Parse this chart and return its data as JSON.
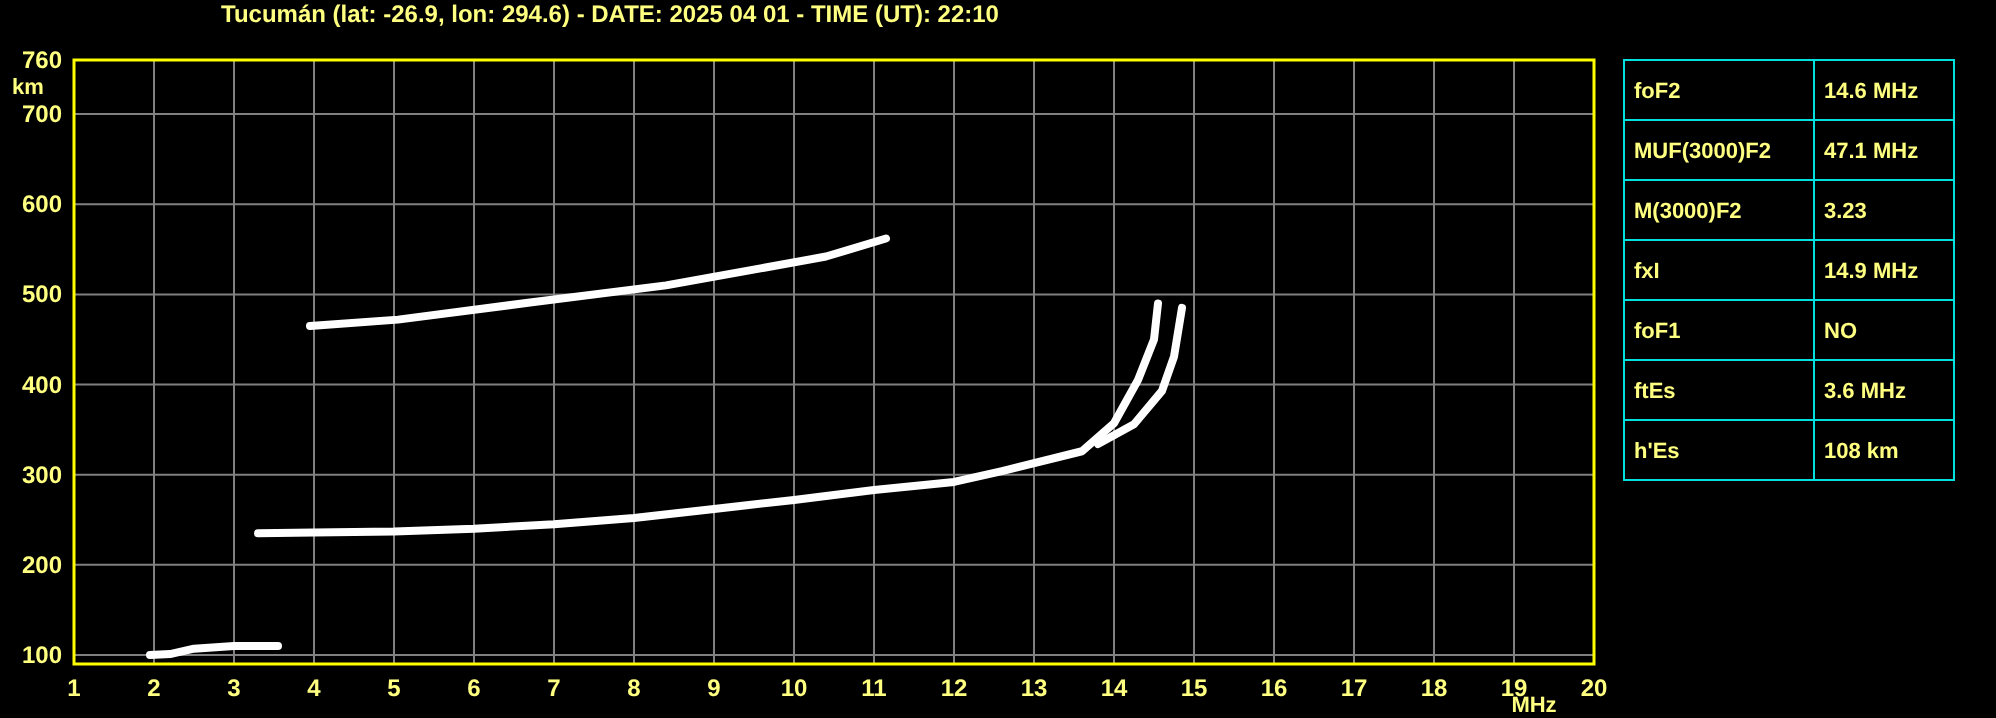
{
  "chart_data": [
    {
      "type": "line",
      "title": "Tucumán (lat: -26.9, lon: 294.6) - DATE: 2025 04 01 - TIME (UT): 22:10",
      "xlabel": "MHz",
      "ylabel": "km",
      "xlim": [
        1,
        20
      ],
      "ylim": [
        90,
        760
      ],
      "xticks": [
        1,
        2,
        3,
        4,
        5,
        6,
        7,
        8,
        9,
        10,
        11,
        12,
        13,
        14,
        15,
        16,
        17,
        18,
        19,
        20
      ],
      "yticks": [
        100,
        200,
        300,
        400,
        500,
        600,
        700,
        760
      ],
      "grid": true,
      "series": [
        {
          "color": "#ffffff",
          "x": [
            1.95,
            2.2,
            2.5,
            3,
            3.55
          ],
          "values": [
            100,
            101,
            107,
            110,
            110
          ]
        },
        {
          "color": "#ffffff",
          "x": [
            3.3,
            4,
            5,
            6,
            7,
            8,
            9,
            10,
            11,
            12,
            12.6,
            13.6,
            14,
            14.3,
            14.5,
            14.55
          ],
          "values": [
            235,
            236,
            237,
            240,
            245,
            252,
            262,
            272,
            283,
            292,
            304,
            326,
            357,
            405,
            450,
            490
          ]
        },
        {
          "color": "#ffffff",
          "x": [
            13.8,
            14.25,
            14.6,
            14.75,
            14.85
          ],
          "values": [
            334,
            356,
            393,
            431,
            485
          ]
        },
        {
          "color": "#ffffff",
          "x": [
            3.95,
            5.05,
            6.7,
            8.4,
            10.4,
            11.15
          ],
          "values": [
            465,
            472,
            491,
            510,
            542,
            562
          ]
        }
      ]
    },
    {
      "type": "other",
      "categories": [
        "foF2",
        "MUF(3000)F2",
        "M(3000)F2",
        "fxI",
        "foF1",
        "ftEs",
        "h'Es"
      ],
      "value_labels": [
        "14.6 MHz",
        "47.1 MHz",
        "3.23",
        "14.9 MHz",
        "NO",
        "3.6 MHz",
        "108 km"
      ]
    }
  ]
}
